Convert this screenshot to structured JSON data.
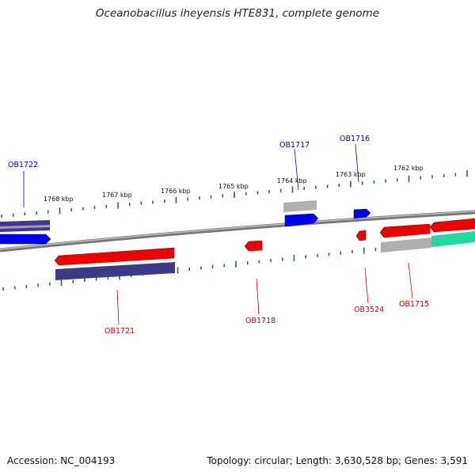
{
  "title": "Oceanobacillus iheyensis HTE831, complete genome",
  "footer": {
    "accession": "Accession: NC_004193",
    "summary": "Topology: circular; Length: 3,630,528 bp; Genes: 3,591"
  },
  "ruler_labels": [
    "1768 kbp",
    "1767 kbp",
    "1766 kbp",
    "1765 kbp",
    "1764 kbp",
    "1763 kbp",
    "1762 kbp"
  ],
  "gene_labels": {
    "forward": [
      "OB1722",
      "OB1717",
      "OB1716"
    ],
    "reverse": [
      "OB1721",
      "OB1718",
      "OB3524",
      "OB1715"
    ]
  },
  "colors": {
    "forward_label": "#0000cc",
    "reverse_label": "#cc0000",
    "forward_gene": "#0000ee",
    "reverse_gene": "#ee0000",
    "hit_purple": "#3d3a87",
    "hit_gray": "#b0b0b0",
    "hit_green": "#22d9a0",
    "backbone": "#777777",
    "ticks": "#1a7a1a"
  }
}
